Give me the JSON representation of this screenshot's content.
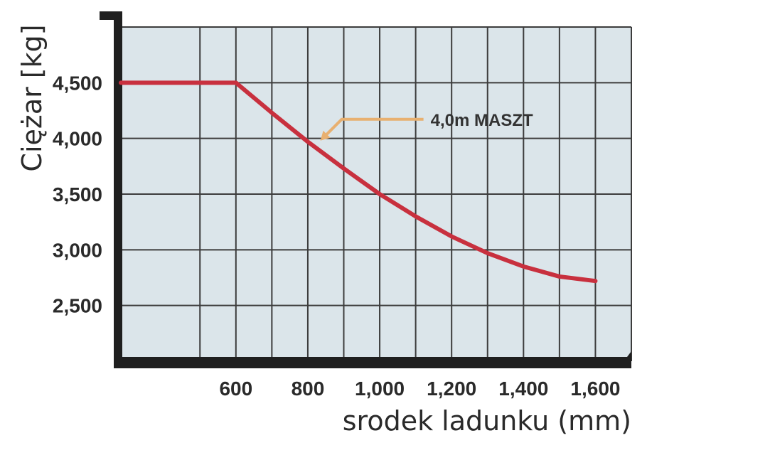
{
  "chart_data": {
    "type": "line",
    "ylabel": "Ciężar [kg]",
    "xlabel": "srodek ladunku (mm)",
    "x_ticks": [
      600,
      800,
      1000,
      1200,
      1400,
      1600
    ],
    "x_tick_labels": [
      "600",
      "800",
      "1,000",
      "1,200",
      "1,400",
      "1,600"
    ],
    "y_ticks": [
      2500,
      3000,
      3500,
      4000,
      4500
    ],
    "y_tick_labels": [
      "2,500",
      "3,000",
      "3,500",
      "4,000",
      "4,500"
    ],
    "xlim": [
      280,
      1700
    ],
    "ylim": [
      2000,
      5000
    ],
    "grid": true,
    "series": [
      {
        "name": "4,0m MASZT",
        "x": [
          280,
          600,
          700,
          800,
          900,
          1000,
          1100,
          1200,
          1300,
          1400,
          1500,
          1600
        ],
        "y": [
          4500,
          4500,
          4230,
          3970,
          3730,
          3500,
          3300,
          3120,
          2970,
          2850,
          2760,
          2720
        ]
      }
    ],
    "annotations": [
      {
        "text": "4,0m MASZT",
        "points_to": [
          835,
          3980
        ]
      }
    ],
    "colors": {
      "line": "#c8303e",
      "plot_bg": "#dbe5ea",
      "grid": "#3c3c3c",
      "axis": "#1f1f1f",
      "annotation_arrow": "#e8b070"
    }
  }
}
